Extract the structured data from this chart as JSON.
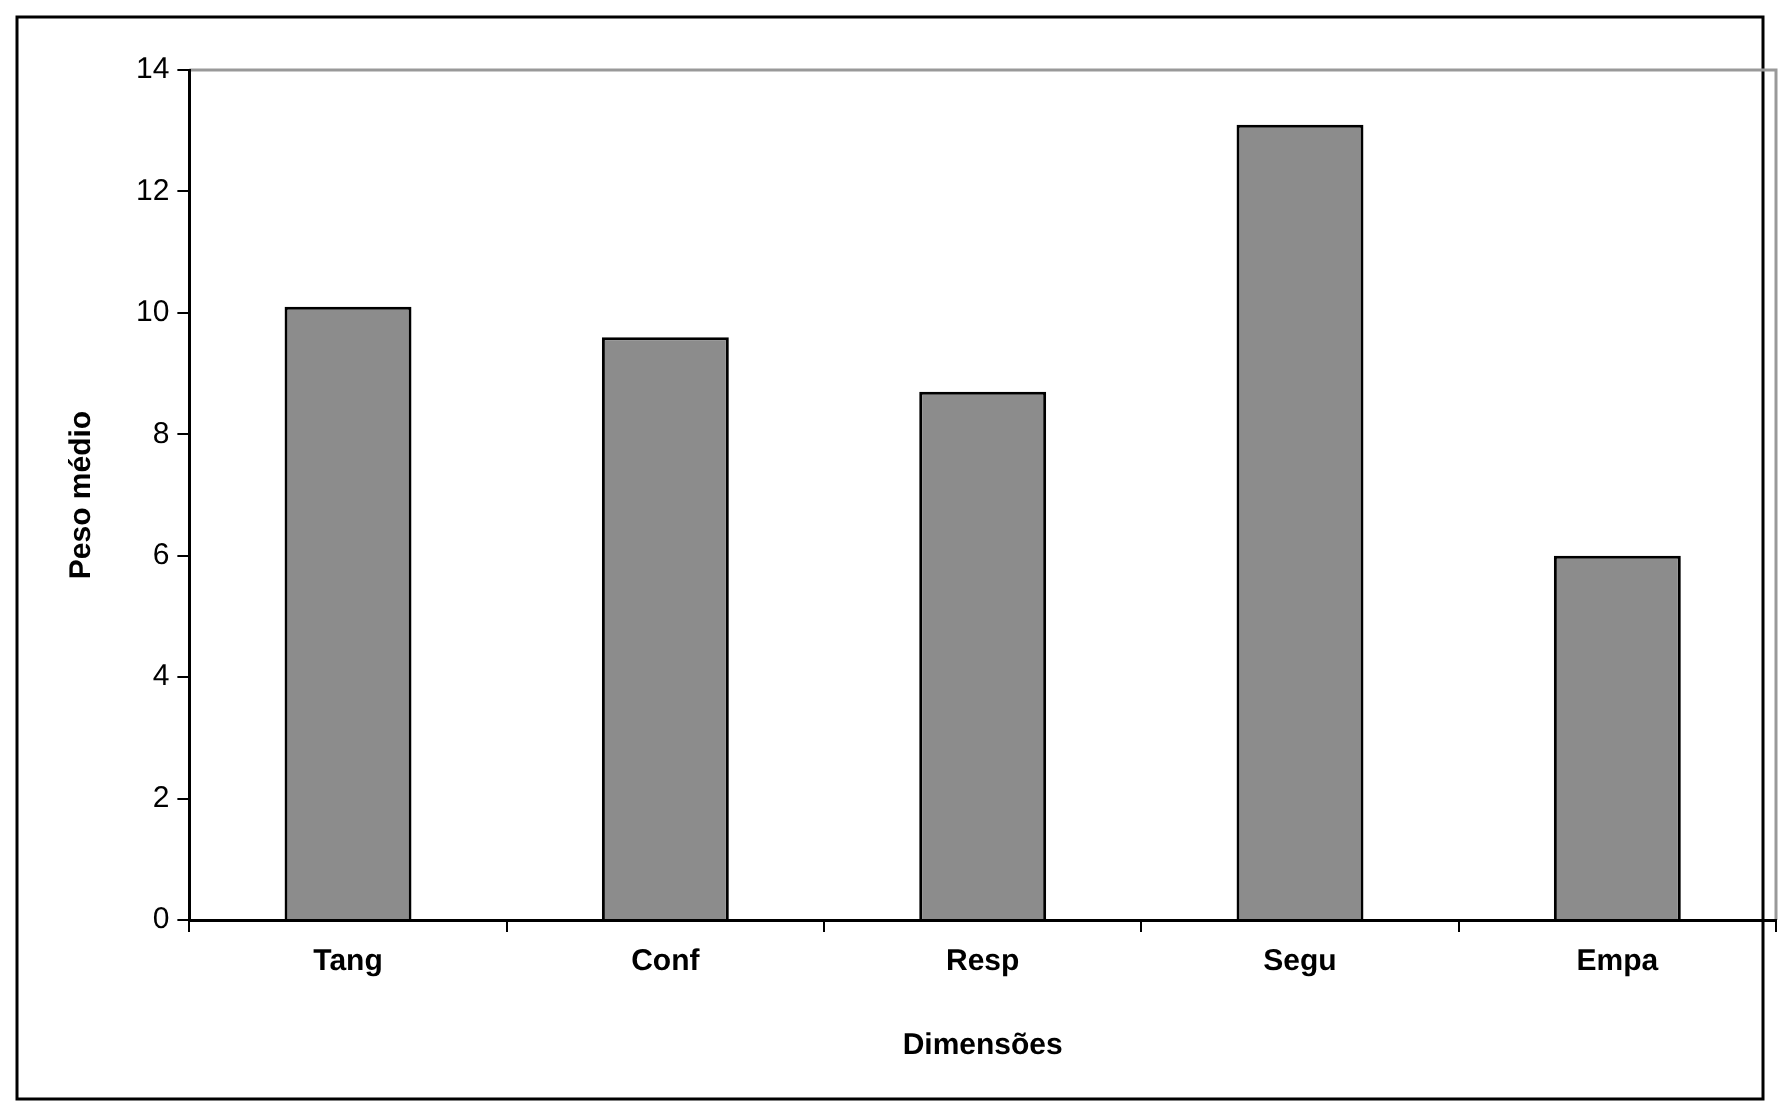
{
  "chart_data": {
    "type": "bar",
    "xlabel": "Dimensões",
    "ylabel": "Peso médio",
    "categories": [
      "Tang",
      "Conf",
      "Resp",
      "Segu",
      "Empa"
    ],
    "values": [
      10.1,
      9.6,
      8.7,
      13.1,
      6.0
    ],
    "color": "#8c8c8c",
    "ylim": [
      0,
      14
    ],
    "yticks": [
      0,
      2,
      4,
      6,
      8,
      10,
      12,
      14
    ],
    "grid": false,
    "legend": false
  }
}
